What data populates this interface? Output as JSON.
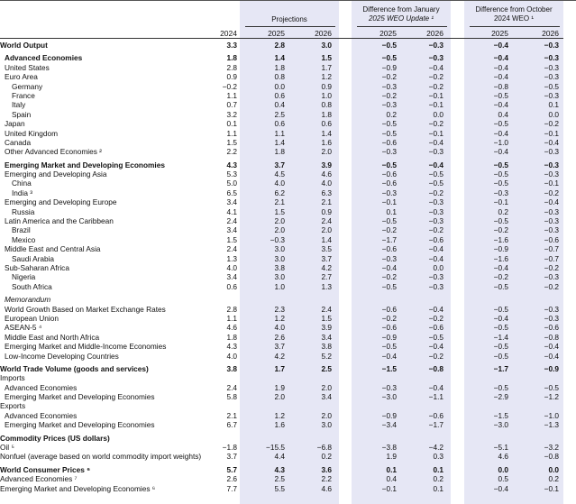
{
  "header": {
    "group_projections": "Projections",
    "group_january_line1": "Difference from January",
    "group_january_line2": "2025 WEO Update ¹",
    "group_october_line1": "Difference from October",
    "group_october_line2": "2024 WEO ¹",
    "years": [
      "2024",
      "2025",
      "2026",
      "2025",
      "2026",
      "2025",
      "2026"
    ]
  },
  "rows": [
    {
      "label": "World Output",
      "indent": 0,
      "bold": true,
      "values": [
        "3.3",
        "2.8",
        "3.0",
        "−0.5",
        "−0.3",
        "−0.4",
        "−0.3"
      ]
    },
    {
      "spacer": true
    },
    {
      "label": "Advanced Economies",
      "indent": 1,
      "bold": true,
      "values": [
        "1.8",
        "1.4",
        "1.5",
        "−0.5",
        "−0.3",
        "−0.4",
        "−0.3"
      ]
    },
    {
      "label": "United States",
      "indent": 1,
      "values": [
        "2.8",
        "1.8",
        "1.7",
        "−0.9",
        "−0.4",
        "−0.4",
        "−0.3"
      ]
    },
    {
      "label": "Euro Area",
      "indent": 1,
      "values": [
        "0.9",
        "0.8",
        "1.2",
        "−0.2",
        "−0.2",
        "−0.4",
        "−0.3"
      ]
    },
    {
      "label": "Germany",
      "indent": 2,
      "values": [
        "−0.2",
        "0.0",
        "0.9",
        "−0.3",
        "−0.2",
        "−0.8",
        "−0.5"
      ]
    },
    {
      "label": "France",
      "indent": 2,
      "values": [
        "1.1",
        "0.6",
        "1.0",
        "−0.2",
        "−0.1",
        "−0.5",
        "−0.3"
      ]
    },
    {
      "label": "Italy",
      "indent": 2,
      "values": [
        "0.7",
        "0.4",
        "0.8",
        "−0.3",
        "−0.1",
        "−0.4",
        "0.1"
      ]
    },
    {
      "label": "Spain",
      "indent": 2,
      "values": [
        "3.2",
        "2.5",
        "1.8",
        "0.2",
        "0.0",
        "0.4",
        "0.0"
      ]
    },
    {
      "label": "Japan",
      "indent": 1,
      "values": [
        "0.1",
        "0.6",
        "0.6",
        "−0.5",
        "−0.2",
        "−0.5",
        "−0.2"
      ]
    },
    {
      "label": "United Kingdom",
      "indent": 1,
      "values": [
        "1.1",
        "1.1",
        "1.4",
        "−0.5",
        "−0.1",
        "−0.4",
        "−0.1"
      ]
    },
    {
      "label": "Canada",
      "indent": 1,
      "values": [
        "1.5",
        "1.4",
        "1.6",
        "−0.6",
        "−0.4",
        "−1.0",
        "−0.4"
      ]
    },
    {
      "label": "Other Advanced Economies ²",
      "indent": 1,
      "values": [
        "2.2",
        "1.8",
        "2.0",
        "−0.3",
        "−0.3",
        "−0.4",
        "−0.3"
      ]
    },
    {
      "spacer": true
    },
    {
      "label": "Emerging Market and Developing Economies",
      "indent": 1,
      "bold": true,
      "values": [
        "4.3",
        "3.7",
        "3.9",
        "−0.5",
        "−0.4",
        "−0.5",
        "−0.3"
      ]
    },
    {
      "label": "Emerging and Developing Asia",
      "indent": 1,
      "values": [
        "5.3",
        "4.5",
        "4.6",
        "−0.6",
        "−0.5",
        "−0.5",
        "−0.3"
      ]
    },
    {
      "label": "China",
      "indent": 2,
      "values": [
        "5.0",
        "4.0",
        "4.0",
        "−0.6",
        "−0.5",
        "−0.5",
        "−0.1"
      ]
    },
    {
      "label": "India ³",
      "indent": 2,
      "values": [
        "6.5",
        "6.2",
        "6.3",
        "−0.3",
        "−0.2",
        "−0.3",
        "−0.2"
      ]
    },
    {
      "label": "Emerging and Developing Europe",
      "indent": 1,
      "values": [
        "3.4",
        "2.1",
        "2.1",
        "−0.1",
        "−0.3",
        "−0.1",
        "−0.4"
      ]
    },
    {
      "label": "Russia",
      "indent": 2,
      "values": [
        "4.1",
        "1.5",
        "0.9",
        "0.1",
        "−0.3",
        "0.2",
        "−0.3"
      ]
    },
    {
      "label": "Latin America and the Caribbean",
      "indent": 1,
      "values": [
        "2.4",
        "2.0",
        "2.4",
        "−0.5",
        "−0.3",
        "−0.5",
        "−0.3"
      ]
    },
    {
      "label": "Brazil",
      "indent": 2,
      "values": [
        "3.4",
        "2.0",
        "2.0",
        "−0.2",
        "−0.2",
        "−0.2",
        "−0.3"
      ]
    },
    {
      "label": "Mexico",
      "indent": 2,
      "values": [
        "1.5",
        "−0.3",
        "1.4",
        "−1.7",
        "−0.6",
        "−1.6",
        "−0.6"
      ]
    },
    {
      "label": "Middle East and Central Asia",
      "indent": 1,
      "values": [
        "2.4",
        "3.0",
        "3.5",
        "−0.6",
        "−0.4",
        "−0.9",
        "−0.7"
      ]
    },
    {
      "label": "Saudi Arabia",
      "indent": 2,
      "values": [
        "1.3",
        "3.0",
        "3.7",
        "−0.3",
        "−0.4",
        "−1.6",
        "−0.7"
      ]
    },
    {
      "label": "Sub-Saharan Africa",
      "indent": 1,
      "values": [
        "4.0",
        "3.8",
        "4.2",
        "−0.4",
        "0.0",
        "−0.4",
        "−0.2"
      ]
    },
    {
      "label": "Nigeria",
      "indent": 2,
      "values": [
        "3.4",
        "3.0",
        "2.7",
        "−0.2",
        "−0.3",
        "−0.2",
        "−0.3"
      ]
    },
    {
      "label": "South Africa",
      "indent": 2,
      "values": [
        "0.6",
        "1.0",
        "1.3",
        "−0.5",
        "−0.3",
        "−0.5",
        "−0.2"
      ]
    },
    {
      "spacer": true
    },
    {
      "label": "Memorandum",
      "indent": 1,
      "memo": true,
      "values": [
        "",
        "",
        "",
        "",
        "",
        "",
        ""
      ]
    },
    {
      "label": "World Growth Based on Market Exchange Rates",
      "indent": 1,
      "values": [
        "2.8",
        "2.3",
        "2.4",
        "−0.6",
        "−0.4",
        "−0.5",
        "−0.3"
      ]
    },
    {
      "label": "European Union",
      "indent": 1,
      "values": [
        "1.1",
        "1.2",
        "1.5",
        "−0.2",
        "−0.2",
        "−0.4",
        "−0.3"
      ]
    },
    {
      "label": "ASEAN-5 ⁴",
      "indent": 1,
      "values": [
        "4.6",
        "4.0",
        "3.9",
        "−0.6",
        "−0.6",
        "−0.5",
        "−0.6"
      ]
    },
    {
      "label": "Middle East and North Africa",
      "indent": 1,
      "values": [
        "1.8",
        "2.6",
        "3.4",
        "−0.9",
        "−0.5",
        "−1.4",
        "−0.8"
      ]
    },
    {
      "label": "Emerging Market and Middle-Income Economies",
      "indent": 1,
      "values": [
        "4.3",
        "3.7",
        "3.8",
        "−0.5",
        "−0.4",
        "−0.5",
        "−0.4"
      ]
    },
    {
      "label": "Low-Income Developing Countries",
      "indent": 1,
      "values": [
        "4.0",
        "4.2",
        "5.2",
        "−0.4",
        "−0.2",
        "−0.5",
        "−0.4"
      ]
    },
    {
      "spacer": true
    },
    {
      "label": "World Trade Volume (goods and services)",
      "indent": 0,
      "bold": true,
      "values": [
        "3.8",
        "1.7",
        "2.5",
        "−1.5",
        "−0.8",
        "−1.7",
        "−0.9"
      ]
    },
    {
      "label": "Imports",
      "indent": 0,
      "values": [
        "",
        "",
        "",
        "",
        "",
        "",
        ""
      ]
    },
    {
      "label": "Advanced Economies",
      "indent": 1,
      "values": [
        "2.4",
        "1.9",
        "2.0",
        "−0.3",
        "−0.4",
        "−0.5",
        "−0.5"
      ]
    },
    {
      "label": "Emerging Market and Developing Economies",
      "indent": 1,
      "values": [
        "5.8",
        "2.0",
        "3.4",
        "−3.0",
        "−1.1",
        "−2.9",
        "−1.2"
      ]
    },
    {
      "label": "Exports",
      "indent": 0,
      "values": [
        "",
        "",
        "",
        "",
        "",
        "",
        ""
      ]
    },
    {
      "label": "Advanced Economies",
      "indent": 1,
      "values": [
        "2.1",
        "1.2",
        "2.0",
        "−0.9",
        "−0.6",
        "−1.5",
        "−1.0"
      ]
    },
    {
      "label": "Emerging Market and Developing Economies",
      "indent": 1,
      "values": [
        "6.7",
        "1.6",
        "3.0",
        "−3.4",
        "−1.7",
        "−3.0",
        "−1.3"
      ]
    },
    {
      "spacer": true
    },
    {
      "label": "Commodity Prices (US dollars)",
      "indent": 0,
      "bold": true,
      "values": [
        "",
        "",
        "",
        "",
        "",
        "",
        ""
      ]
    },
    {
      "label": "Oil ⁵",
      "indent": 0,
      "values": [
        "−1.8",
        "−15.5",
        "−6.8",
        "−3.8",
        "−4.2",
        "−5.1",
        "−3.2"
      ]
    },
    {
      "label": "Nonfuel (average based on world commodity import weights)",
      "indent": 0,
      "values": [
        "3.7",
        "4.4",
        "0.2",
        "1.9",
        "0.3",
        "4.6",
        "−0.8"
      ]
    },
    {
      "spacer": true
    },
    {
      "label": "World Consumer Prices ⁶",
      "indent": 0,
      "bold": true,
      "values": [
        "5.7",
        "4.3",
        "3.6",
        "0.1",
        "0.1",
        "0.0",
        "0.0"
      ]
    },
    {
      "label": "Advanced Economies ⁷",
      "indent": 0,
      "values": [
        "2.6",
        "2.5",
        "2.2",
        "0.4",
        "0.2",
        "0.5",
        "0.2"
      ]
    },
    {
      "label": "Emerging Market and Developing Economies ⁶",
      "indent": 0,
      "values": [
        "7.7",
        "5.5",
        "4.6",
        "−0.1",
        "0.1",
        "−0.4",
        "−0.1"
      ]
    }
  ]
}
